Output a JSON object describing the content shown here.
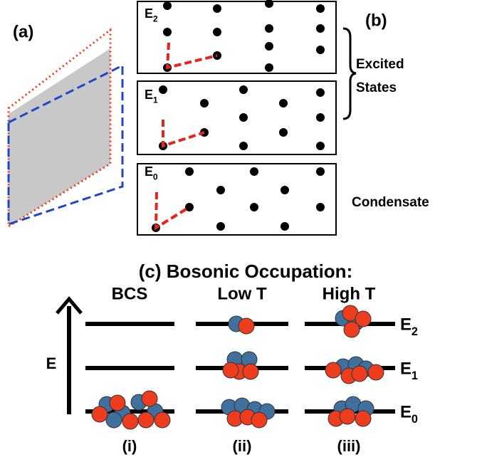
{
  "panel_a": {
    "label": "(a)"
  },
  "panel_b": {
    "label": "(b)",
    "levels": [
      {
        "base": "E",
        "sub": "2"
      },
      {
        "base": "E",
        "sub": "1"
      },
      {
        "base": "E",
        "sub": "0"
      }
    ],
    "excited_label": [
      "Excited",
      "States"
    ],
    "condensate_label": "Condensate"
  },
  "panel_c": {
    "title": "(c) Bosonic Occupation:",
    "axis_label": "E",
    "columns": [
      {
        "header": "BCS",
        "roman": "(i)"
      },
      {
        "header": "Low T",
        "roman": "(ii)"
      },
      {
        "header": "High T",
        "roman": "(iii)"
      }
    ],
    "levels": [
      {
        "base": "E",
        "sub": "2"
      },
      {
        "base": "E",
        "sub": "1"
      },
      {
        "base": "E",
        "sub": "0"
      }
    ]
  }
}
